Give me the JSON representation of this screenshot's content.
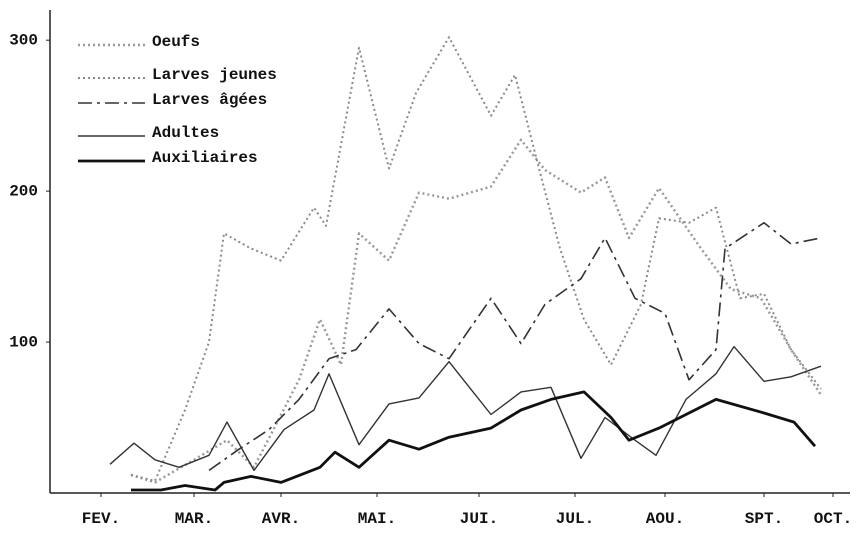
{
  "chart_data": {
    "type": "line",
    "xlim": [
      0,
      270
    ],
    "xticks": [
      {
        "value": 17,
        "label": "FEV."
      },
      {
        "value": 48,
        "label": "MAR."
      },
      {
        "value": 77,
        "label": "AVR."
      },
      {
        "value": 109,
        "label": "MAI."
      },
      {
        "value": 143,
        "label": "JUI."
      },
      {
        "value": 175,
        "label": "JUL."
      },
      {
        "value": 205,
        "label": "AOU."
      },
      {
        "value": 238,
        "label": "SPT."
      },
      {
        "value": 261,
        "label": "OCT."
      }
    ],
    "ylim": [
      0,
      320
    ],
    "yticks": [
      100,
      200,
      300
    ],
    "grid": false,
    "legend": "upper left",
    "series": [
      {
        "name": "Oeufs",
        "color": "#9a9a9a",
        "line_style": "dotted",
        "line_width": 2.5,
        "x": [
          27,
          35,
          48,
          59,
          68,
          83,
          90,
          97,
          103,
          113,
          123,
          133,
          147,
          157,
          165,
          177,
          185,
          193,
          203,
          217,
          227,
          237,
          247,
          257
        ],
        "values": [
          12,
          7,
          22,
          35,
          17,
          75,
          115,
          85,
          172,
          154,
          199,
          195,
          203,
          234,
          214,
          199,
          209,
          169,
          202,
          162,
          135,
          129,
          95,
          65
        ]
      },
      {
        "name": "Larves jeunes",
        "color": "#8a8a8a",
        "line_style": "dotted",
        "line_width": 2,
        "x": [
          27,
          35,
          45,
          53,
          58,
          67,
          77,
          88,
          92,
          103,
          113,
          122,
          133,
          147,
          155,
          163,
          170,
          178,
          187,
          197,
          203,
          213,
          222,
          230,
          238,
          247,
          257
        ],
        "values": [
          12,
          8,
          55,
          100,
          172,
          162,
          154,
          189,
          177,
          295,
          215,
          265,
          302,
          250,
          277,
          215,
          162,
          115,
          85,
          125,
          182,
          179,
          189,
          129,
          132,
          95,
          69
        ]
      },
      {
        "name": "Larves âgées",
        "color": "#333333",
        "line_style": "dashdot",
        "line_width": 1.6,
        "x": [
          53,
          63,
          73,
          83,
          93,
          102,
          113,
          123,
          133,
          147,
          157,
          165,
          177,
          185,
          195,
          205,
          213,
          222,
          225,
          238,
          247,
          257
        ],
        "values": [
          15,
          29,
          42,
          62,
          89,
          95,
          122,
          99,
          89,
          129,
          99,
          125,
          142,
          169,
          129,
          119,
          75,
          95,
          162,
          179,
          165,
          169
        ]
      },
      {
        "name": "Adultes",
        "color": "#333333",
        "line_style": "solid",
        "line_width": 1.4,
        "x": [
          20,
          28,
          35,
          43,
          53,
          59,
          68,
          78,
          88,
          93,
          103,
          113,
          123,
          133,
          147,
          157,
          167,
          177,
          185,
          195,
          202,
          212,
          222,
          228,
          238,
          247,
          257
        ],
        "values": [
          19,
          33,
          22,
          17,
          25,
          47,
          15,
          42,
          55,
          79,
          32,
          59,
          63,
          87,
          52,
          67,
          70,
          23,
          50,
          35,
          25,
          62,
          79,
          97,
          74,
          77,
          84
        ]
      },
      {
        "name": "Auxiliaires",
        "color": "#111111",
        "line_style": "solid",
        "line_width": 2.8,
        "x": [
          27,
          37,
          45,
          55,
          58,
          67,
          77,
          90,
          95,
          103,
          113,
          123,
          133,
          147,
          157,
          167,
          178,
          187,
          193,
          203,
          222,
          238,
          248,
          255
        ],
        "values": [
          2,
          2,
          5,
          2,
          7,
          11,
          7,
          17,
          27,
          17,
          35,
          29,
          37,
          43,
          55,
          62,
          67,
          50,
          35,
          43,
          62,
          53,
          47,
          31
        ]
      }
    ]
  }
}
